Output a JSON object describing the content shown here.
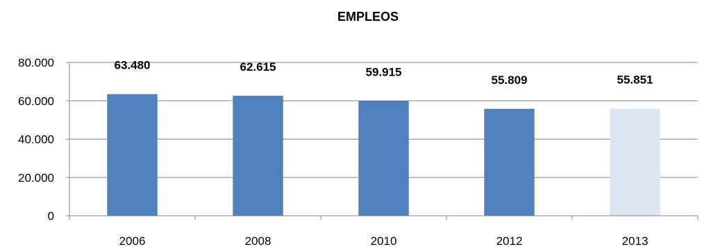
{
  "chart_data": {
    "type": "bar",
    "title": "EMPLEOS",
    "xlabel": "",
    "ylabel": "",
    "categories": [
      "2006",
      "2008",
      "2010",
      "2012",
      "2013"
    ],
    "values": [
      63480,
      62615,
      59915,
      55809,
      55851
    ],
    "data_labels": [
      "63.480",
      "62.615",
      "59.915",
      "55.809",
      "55.851"
    ],
    "ylim": [
      0,
      80000
    ],
    "y_ticks": [
      0,
      20000,
      40000,
      60000,
      80000
    ],
    "y_tick_labels": [
      "0",
      "20.000",
      "40.000",
      "60.000",
      "80.000"
    ],
    "bar_colors": [
      "#4f81bd",
      "#4f81bd",
      "#4f81bd",
      "#4f81bd",
      "#dce6f2"
    ],
    "gridlines": true,
    "gridline_color": "#868686",
    "legend": "none"
  }
}
